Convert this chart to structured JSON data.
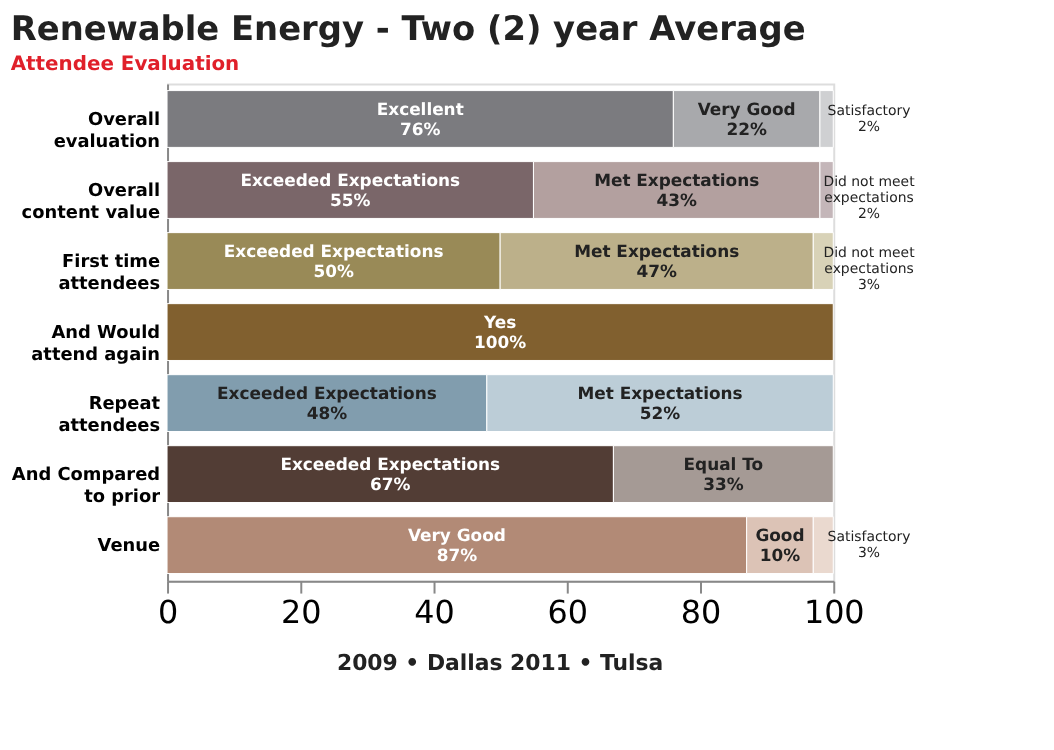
{
  "chart_data": {
    "type": "bar",
    "orientation": "horizontal",
    "stacked": true,
    "subtitle": "Attendee Evaluation",
    "title": "Renewable Energy - Two (2) year Average",
    "categories": [
      "Overall\nevaluation",
      "Overall\ncontent value",
      "First time\nattendees",
      "And Would\nattend again",
      "Repeat\nattendees",
      "And Compared\nto prior",
      "Venue"
    ],
    "series": [
      {
        "values": [
          76,
          55,
          50,
          100,
          48,
          67,
          87
        ],
        "colors": [
          "#7b7b7f",
          "#7a6669",
          "#998a57",
          "#81602f",
          "#819dae",
          "#523d35",
          "#b28a76"
        ],
        "value_labels": [
          "Excellent\n76%",
          "Exceeded Expectations\n55%",
          "Exceeded Expectations\n50%",
          "Yes\n100%",
          "Exceeded Expectations\n48%",
          "Exceeded Expectations\n67%",
          "Very Good\n87%"
        ]
      },
      {
        "values": [
          22,
          43,
          47,
          null,
          52,
          33,
          10
        ],
        "colors": [
          "#a8a9ac",
          "#b3a09f",
          "#bcb08a",
          null,
          "#bccdd7",
          "#a59a95",
          "#dcc3b6"
        ],
        "value_labels": [
          "Very Good\n22%",
          "Met Expectations\n43%",
          "Met Expectations\n47%",
          null,
          "Met Expectations\n52%",
          "Equal To\n33%",
          "Good\n10%"
        ]
      },
      {
        "values": [
          2,
          2,
          3,
          null,
          null,
          null,
          3
        ],
        "colors": [
          "#cfd0d2",
          "#c4b6b9",
          "#d8d2b7",
          null,
          null,
          null,
          "#ead9cf"
        ],
        "value_labels": [
          "Satisfactory\n2%",
          "Did not meet\nexpectations\n2%",
          "Did not meet\nexpectations\n3%",
          null,
          null,
          null,
          "Satisfactory\n3%"
        ]
      }
    ],
    "xlim": [
      0,
      100
    ],
    "xticks": [
      0,
      20,
      40,
      60,
      80,
      100
    ],
    "grid": false,
    "legend": false,
    "annotations": [
      "2009 • Dallas     2011 • Tulsa"
    ]
  }
}
